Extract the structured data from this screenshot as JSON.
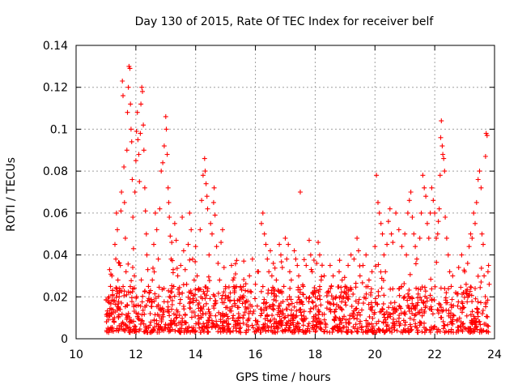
{
  "chart_data": {
    "type": "scatter",
    "title": "Day 130 of 2015, Rate Of TEC Index for receiver belf",
    "xlabel": "GPS time / hours",
    "ylabel": "ROTI / TECUs",
    "xlim": [
      10,
      24
    ],
    "ylim": [
      0,
      0.14
    ],
    "x_ticks": [
      10,
      12,
      14,
      16,
      18,
      20,
      22,
      24
    ],
    "y_ticks": [
      0,
      0.02,
      0.04,
      0.06,
      0.08,
      0.1,
      0.12,
      0.14
    ],
    "x_tick_labels": [
      "10",
      "12",
      "14",
      "16",
      "18",
      "20",
      "22",
      "24"
    ],
    "y_tick_labels": [
      "0",
      "0.02",
      "0.04",
      "0.06",
      "0.08",
      "0.1",
      "0.12",
      "0.14"
    ],
    "grid": true,
    "marker": "+",
    "series_color": "#ff0000",
    "series": [
      {
        "name": "ROTI",
        "points": [
          [
            11.05,
            0.012
          ],
          [
            11.08,
            0.009
          ],
          [
            11.1,
            0.02
          ],
          [
            11.12,
            0.033
          ],
          [
            11.15,
            0.025
          ],
          [
            11.18,
            0.014
          ],
          [
            11.2,
            0.03
          ],
          [
            11.22,
            0.021
          ],
          [
            11.25,
            0.018
          ],
          [
            11.28,
            0.01
          ],
          [
            11.3,
            0.045
          ],
          [
            11.33,
            0.038
          ],
          [
            11.35,
            0.06
          ],
          [
            11.38,
            0.052
          ],
          [
            11.4,
            0.028
          ],
          [
            11.42,
            0.015
          ],
          [
            11.45,
            0.022
          ],
          [
            11.48,
            0.035
          ],
          [
            11.5,
            0.061
          ],
          [
            11.52,
            0.07
          ],
          [
            11.55,
            0.123
          ],
          [
            11.57,
            0.116
          ],
          [
            11.6,
            0.082
          ],
          [
            11.62,
            0.065
          ],
          [
            11.65,
            0.048
          ],
          [
            11.67,
            0.032
          ],
          [
            11.7,
            0.09
          ],
          [
            11.72,
            0.108
          ],
          [
            11.75,
            0.12
          ],
          [
            11.77,
            0.13
          ],
          [
            11.8,
            0.129
          ],
          [
            11.82,
            0.112
          ],
          [
            11.84,
            0.1
          ],
          [
            11.86,
            0.094
          ],
          [
            11.88,
            0.076
          ],
          [
            11.9,
            0.058
          ],
          [
            11.92,
            0.043
          ],
          [
            11.95,
            0.03
          ],
          [
            11.97,
            0.07
          ],
          [
            12.0,
            0.085
          ],
          [
            12.02,
            0.099
          ],
          [
            12.05,
            0.108
          ],
          [
            12.07,
            0.095
          ],
          [
            12.1,
            0.088
          ],
          [
            12.12,
            0.075
          ],
          [
            12.15,
            0.098
          ],
          [
            12.17,
            0.112
          ],
          [
            12.2,
            0.12
          ],
          [
            12.22,
            0.118
          ],
          [
            12.25,
            0.102
          ],
          [
            12.27,
            0.09
          ],
          [
            12.3,
            0.072
          ],
          [
            12.32,
            0.061
          ],
          [
            12.35,
            0.05
          ],
          [
            12.37,
            0.04
          ],
          [
            12.4,
            0.033
          ],
          [
            12.42,
            0.025
          ],
          [
            12.45,
            0.018
          ],
          [
            12.48,
            0.012
          ],
          [
            12.5,
            0.008
          ],
          [
            12.55,
            0.028
          ],
          [
            12.6,
            0.045
          ],
          [
            12.65,
            0.06
          ],
          [
            12.7,
            0.052
          ],
          [
            12.75,
            0.038
          ],
          [
            12.8,
            0.062
          ],
          [
            12.85,
            0.08
          ],
          [
            12.9,
            0.084
          ],
          [
            12.95,
            0.092
          ],
          [
            13.0,
            0.106
          ],
          [
            13.02,
            0.1
          ],
          [
            13.05,
            0.088
          ],
          [
            13.08,
            0.072
          ],
          [
            13.1,
            0.065
          ],
          [
            13.12,
            0.058
          ],
          [
            13.15,
            0.049
          ],
          [
            13.18,
            0.038
          ],
          [
            13.2,
            0.046
          ],
          [
            13.25,
            0.033
          ],
          [
            13.3,
            0.055
          ],
          [
            13.35,
            0.047
          ],
          [
            13.4,
            0.03
          ],
          [
            13.45,
            0.022
          ],
          [
            13.5,
            0.035
          ],
          [
            13.55,
            0.058
          ],
          [
            13.6,
            0.042
          ],
          [
            13.65,
            0.033
          ],
          [
            13.7,
            0.026
          ],
          [
            13.75,
            0.045
          ],
          [
            13.8,
            0.06
          ],
          [
            13.85,
            0.052
          ],
          [
            13.9,
            0.038
          ],
          [
            13.95,
            0.028
          ],
          [
            14.0,
            0.044
          ],
          [
            14.05,
            0.03
          ],
          [
            14.1,
            0.024
          ],
          [
            14.15,
            0.052
          ],
          [
            14.2,
            0.066
          ],
          [
            14.25,
            0.078
          ],
          [
            14.3,
            0.086
          ],
          [
            14.32,
            0.08
          ],
          [
            14.35,
            0.074
          ],
          [
            14.38,
            0.068
          ],
          [
            14.4,
            0.062
          ],
          [
            14.45,
            0.04
          ],
          [
            14.5,
            0.055
          ],
          [
            14.55,
            0.05
          ],
          [
            14.6,
            0.065
          ],
          [
            14.62,
            0.072
          ],
          [
            14.65,
            0.059
          ],
          [
            14.7,
            0.044
          ],
          [
            14.75,
            0.036
          ],
          [
            14.8,
            0.028
          ],
          [
            14.85,
            0.046
          ],
          [
            14.9,
            0.052
          ],
          [
            14.95,
            0.034
          ],
          [
            15.0,
            0.024
          ],
          [
            15.05,
            0.015
          ],
          [
            15.1,
            0.02
          ],
          [
            15.15,
            0.018
          ],
          [
            15.2,
            0.035
          ],
          [
            15.25,
            0.028
          ],
          [
            15.3,
            0.022
          ],
          [
            15.4,
            0.015
          ],
          [
            15.5,
            0.02
          ],
          [
            15.6,
            0.025
          ],
          [
            15.7,
            0.018
          ],
          [
            15.8,
            0.03
          ],
          [
            15.9,
            0.038
          ],
          [
            16.0,
            0.026
          ],
          [
            16.1,
            0.032
          ],
          [
            16.2,
            0.055
          ],
          [
            16.25,
            0.06
          ],
          [
            16.3,
            0.05
          ],
          [
            16.35,
            0.045
          ],
          [
            16.4,
            0.038
          ],
          [
            16.45,
            0.032
          ],
          [
            16.5,
            0.042
          ],
          [
            16.55,
            0.03
          ],
          [
            16.6,
            0.036
          ],
          [
            16.7,
            0.028
          ],
          [
            16.8,
            0.045
          ],
          [
            16.85,
            0.04
          ],
          [
            16.9,
            0.034
          ],
          [
            16.95,
            0.025
          ],
          [
            17.0,
            0.048
          ],
          [
            17.05,
            0.038
          ],
          [
            17.1,
            0.045
          ],
          [
            17.15,
            0.032
          ],
          [
            17.2,
            0.028
          ],
          [
            17.3,
            0.042
          ],
          [
            17.35,
            0.038
          ],
          [
            17.4,
            0.035
          ],
          [
            17.45,
            0.03
          ],
          [
            17.5,
            0.07
          ],
          [
            17.6,
            0.025
          ],
          [
            17.7,
            0.035
          ],
          [
            17.8,
            0.047
          ],
          [
            17.85,
            0.04
          ],
          [
            17.9,
            0.032
          ],
          [
            18.0,
            0.022
          ],
          [
            18.05,
            0.036
          ],
          [
            18.1,
            0.046
          ],
          [
            18.15,
            0.04
          ],
          [
            18.2,
            0.028
          ],
          [
            18.3,
            0.03
          ],
          [
            18.4,
            0.022
          ],
          [
            18.5,
            0.035
          ],
          [
            18.6,
            0.03
          ],
          [
            18.7,
            0.02
          ],
          [
            18.8,
            0.032
          ],
          [
            18.9,
            0.028
          ],
          [
            19.0,
            0.025
          ],
          [
            19.1,
            0.035
          ],
          [
            19.2,
            0.04
          ],
          [
            19.3,
            0.038
          ],
          [
            19.4,
            0.048
          ],
          [
            19.45,
            0.042
          ],
          [
            19.5,
            0.03
          ],
          [
            19.6,
            0.035
          ],
          [
            19.7,
            0.04
          ],
          [
            19.8,
            0.028
          ],
          [
            19.9,
            0.032
          ],
          [
            20.0,
            0.044
          ],
          [
            20.05,
            0.078
          ],
          [
            20.1,
            0.065
          ],
          [
            20.15,
            0.06
          ],
          [
            20.2,
            0.055
          ],
          [
            20.25,
            0.05
          ],
          [
            20.3,
            0.04
          ],
          [
            20.35,
            0.032
          ],
          [
            20.4,
            0.045
          ],
          [
            20.45,
            0.056
          ],
          [
            20.5,
            0.062
          ],
          [
            20.55,
            0.05
          ],
          [
            20.6,
            0.046
          ],
          [
            20.7,
            0.06
          ],
          [
            20.8,
            0.052
          ],
          [
            20.9,
            0.044
          ],
          [
            21.0,
            0.05
          ],
          [
            21.05,
            0.04
          ],
          [
            21.1,
            0.06
          ],
          [
            21.15,
            0.066
          ],
          [
            21.2,
            0.07
          ],
          [
            21.25,
            0.058
          ],
          [
            21.3,
            0.05
          ],
          [
            21.35,
            0.044
          ],
          [
            21.4,
            0.038
          ],
          [
            21.5,
            0.048
          ],
          [
            21.55,
            0.06
          ],
          [
            21.6,
            0.078
          ],
          [
            21.65,
            0.072
          ],
          [
            21.7,
            0.068
          ],
          [
            21.75,
            0.055
          ],
          [
            21.8,
            0.048
          ],
          [
            21.85,
            0.06
          ],
          [
            21.9,
            0.072
          ],
          [
            21.95,
            0.066
          ],
          [
            22.0,
            0.06
          ],
          [
            22.05,
            0.048
          ],
          [
            22.1,
            0.05
          ],
          [
            22.12,
            0.056
          ],
          [
            22.15,
            0.062
          ],
          [
            22.18,
            0.078
          ],
          [
            22.2,
            0.096
          ],
          [
            22.22,
            0.104
          ],
          [
            22.25,
            0.092
          ],
          [
            22.27,
            0.088
          ],
          [
            22.3,
            0.086
          ],
          [
            22.33,
            0.08
          ],
          [
            22.35,
            0.058
          ],
          [
            22.4,
            0.048
          ],
          [
            22.45,
            0.04
          ],
          [
            22.5,
            0.032
          ],
          [
            22.55,
            0.025
          ],
          [
            22.6,
            0.03
          ],
          [
            22.7,
            0.022
          ],
          [
            22.8,
            0.034
          ],
          [
            22.9,
            0.04
          ],
          [
            23.0,
            0.032
          ],
          [
            23.05,
            0.026
          ],
          [
            23.1,
            0.036
          ],
          [
            23.15,
            0.044
          ],
          [
            23.2,
            0.05
          ],
          [
            23.25,
            0.048
          ],
          [
            23.3,
            0.06
          ],
          [
            23.35,
            0.055
          ],
          [
            23.4,
            0.065
          ],
          [
            23.45,
            0.076
          ],
          [
            23.5,
            0.08
          ],
          [
            23.55,
            0.072
          ],
          [
            23.58,
            0.05
          ],
          [
            23.62,
            0.045
          ],
          [
            23.65,
            0.03
          ],
          [
            23.7,
            0.087
          ],
          [
            23.72,
            0.098
          ],
          [
            23.75,
            0.097
          ],
          [
            23.78,
            0.032
          ],
          [
            23.8,
            0.035
          ],
          [
            23.82,
            0.026
          ]
        ]
      }
    ],
    "dense_band": {
      "x_start": 11.0,
      "x_end": 23.85,
      "typical_min": 0.003,
      "typical_max": 0.025
    }
  }
}
